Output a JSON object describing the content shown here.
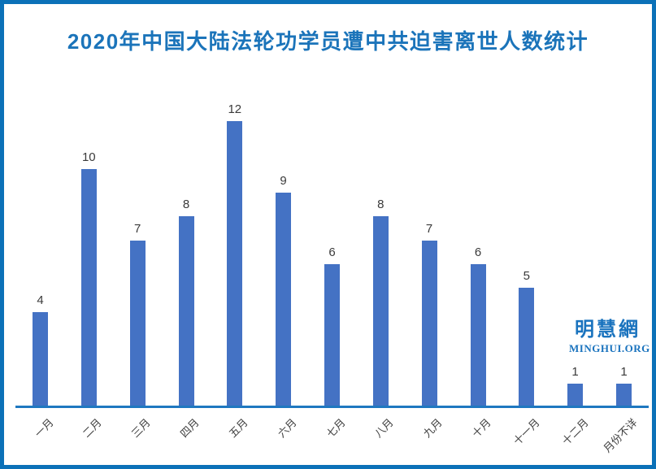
{
  "title": "2020年中国大陆法轮功学员遭中共迫害离世人数统计",
  "logo": {
    "cjk": "明慧網",
    "latin": "MINGHUI.ORG"
  },
  "colors": {
    "bar": "#4472c4",
    "frame_border": "#0b71b8",
    "axis_line": "#1f78c0",
    "title_text": "#1b74ba",
    "value_label": "#3a3a3a",
    "axis_label": "#404040",
    "logo_text": "#1a73be"
  },
  "chart_data": {
    "type": "bar",
    "title": "2020年中国大陆法轮功学员遭中共迫害离世人数统计",
    "categories": [
      "一月",
      "二月",
      "三月",
      "四月",
      "五月",
      "六月",
      "七月",
      "八月",
      "九月",
      "十月",
      "十一月",
      "十二月",
      "月份不详"
    ],
    "values": [
      4,
      10,
      7,
      8,
      12,
      9,
      6,
      8,
      7,
      6,
      5,
      1,
      1
    ],
    "xlabel": "",
    "ylabel": "",
    "ylim": [
      0,
      12
    ],
    "grid": false,
    "legend": "none",
    "value_labels_shown": true,
    "x_label_rotation_deg": 45
  }
}
